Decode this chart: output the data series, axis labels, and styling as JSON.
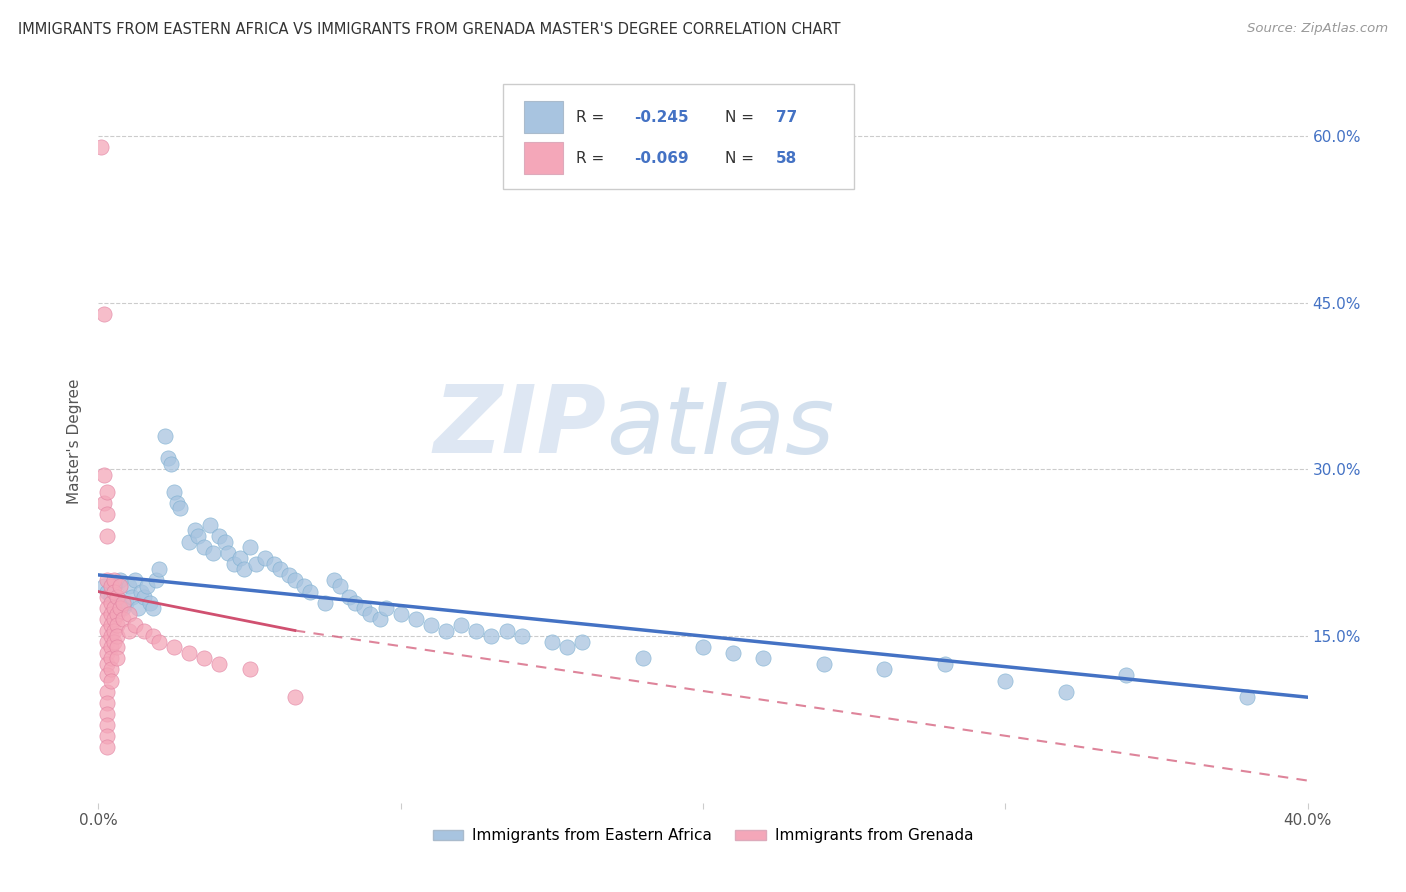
{
  "title": "IMMIGRANTS FROM EASTERN AFRICA VS IMMIGRANTS FROM GRENADA MASTER'S DEGREE CORRELATION CHART",
  "source": "Source: ZipAtlas.com",
  "ylabel": "Master's Degree",
  "xlim": [
    0.0,
    0.4
  ],
  "ylim": [
    0.0,
    0.65
  ],
  "blue_color": "#a8c4e0",
  "pink_color": "#f4a7b9",
  "blue_line_color": "#4472c4",
  "pink_line_color": "#d05070",
  "watermark_zip": "ZIP",
  "watermark_atlas": "atlas",
  "blue_scatter": [
    [
      0.002,
      0.195
    ],
    [
      0.003,
      0.19
    ],
    [
      0.004,
      0.185
    ],
    [
      0.005,
      0.195
    ],
    [
      0.006,
      0.185
    ],
    [
      0.007,
      0.2
    ],
    [
      0.008,
      0.175
    ],
    [
      0.009,
      0.18
    ],
    [
      0.01,
      0.195
    ],
    [
      0.011,
      0.185
    ],
    [
      0.012,
      0.2
    ],
    [
      0.013,
      0.175
    ],
    [
      0.014,
      0.19
    ],
    [
      0.015,
      0.185
    ],
    [
      0.016,
      0.195
    ],
    [
      0.017,
      0.18
    ],
    [
      0.018,
      0.175
    ],
    [
      0.019,
      0.2
    ],
    [
      0.02,
      0.21
    ],
    [
      0.022,
      0.33
    ],
    [
      0.023,
      0.31
    ],
    [
      0.024,
      0.305
    ],
    [
      0.025,
      0.28
    ],
    [
      0.026,
      0.27
    ],
    [
      0.027,
      0.265
    ],
    [
      0.03,
      0.235
    ],
    [
      0.032,
      0.245
    ],
    [
      0.033,
      0.24
    ],
    [
      0.035,
      0.23
    ],
    [
      0.037,
      0.25
    ],
    [
      0.038,
      0.225
    ],
    [
      0.04,
      0.24
    ],
    [
      0.042,
      0.235
    ],
    [
      0.043,
      0.225
    ],
    [
      0.045,
      0.215
    ],
    [
      0.047,
      0.22
    ],
    [
      0.048,
      0.21
    ],
    [
      0.05,
      0.23
    ],
    [
      0.052,
      0.215
    ],
    [
      0.055,
      0.22
    ],
    [
      0.058,
      0.215
    ],
    [
      0.06,
      0.21
    ],
    [
      0.063,
      0.205
    ],
    [
      0.065,
      0.2
    ],
    [
      0.068,
      0.195
    ],
    [
      0.07,
      0.19
    ],
    [
      0.075,
      0.18
    ],
    [
      0.078,
      0.2
    ],
    [
      0.08,
      0.195
    ],
    [
      0.083,
      0.185
    ],
    [
      0.085,
      0.18
    ],
    [
      0.088,
      0.175
    ],
    [
      0.09,
      0.17
    ],
    [
      0.093,
      0.165
    ],
    [
      0.095,
      0.175
    ],
    [
      0.1,
      0.17
    ],
    [
      0.105,
      0.165
    ],
    [
      0.11,
      0.16
    ],
    [
      0.115,
      0.155
    ],
    [
      0.12,
      0.16
    ],
    [
      0.125,
      0.155
    ],
    [
      0.13,
      0.15
    ],
    [
      0.135,
      0.155
    ],
    [
      0.14,
      0.15
    ],
    [
      0.15,
      0.145
    ],
    [
      0.155,
      0.14
    ],
    [
      0.16,
      0.145
    ],
    [
      0.18,
      0.13
    ],
    [
      0.2,
      0.14
    ],
    [
      0.21,
      0.135
    ],
    [
      0.22,
      0.13
    ],
    [
      0.24,
      0.125
    ],
    [
      0.26,
      0.12
    ],
    [
      0.28,
      0.125
    ],
    [
      0.3,
      0.11
    ],
    [
      0.32,
      0.1
    ],
    [
      0.34,
      0.115
    ],
    [
      0.38,
      0.095
    ]
  ],
  "pink_scatter": [
    [
      0.001,
      0.59
    ],
    [
      0.002,
      0.44
    ],
    [
      0.002,
      0.295
    ],
    [
      0.002,
      0.27
    ],
    [
      0.003,
      0.28
    ],
    [
      0.003,
      0.26
    ],
    [
      0.003,
      0.24
    ],
    [
      0.003,
      0.2
    ],
    [
      0.003,
      0.185
    ],
    [
      0.003,
      0.175
    ],
    [
      0.003,
      0.165
    ],
    [
      0.003,
      0.155
    ],
    [
      0.003,
      0.145
    ],
    [
      0.003,
      0.135
    ],
    [
      0.003,
      0.125
    ],
    [
      0.003,
      0.115
    ],
    [
      0.003,
      0.1
    ],
    [
      0.003,
      0.09
    ],
    [
      0.003,
      0.08
    ],
    [
      0.003,
      0.07
    ],
    [
      0.003,
      0.06
    ],
    [
      0.003,
      0.05
    ],
    [
      0.004,
      0.195
    ],
    [
      0.004,
      0.18
    ],
    [
      0.004,
      0.17
    ],
    [
      0.004,
      0.16
    ],
    [
      0.004,
      0.15
    ],
    [
      0.004,
      0.14
    ],
    [
      0.004,
      0.13
    ],
    [
      0.004,
      0.12
    ],
    [
      0.004,
      0.11
    ],
    [
      0.005,
      0.2
    ],
    [
      0.005,
      0.19
    ],
    [
      0.005,
      0.175
    ],
    [
      0.005,
      0.165
    ],
    [
      0.005,
      0.155
    ],
    [
      0.005,
      0.145
    ],
    [
      0.006,
      0.185
    ],
    [
      0.006,
      0.17
    ],
    [
      0.006,
      0.16
    ],
    [
      0.006,
      0.15
    ],
    [
      0.006,
      0.14
    ],
    [
      0.006,
      0.13
    ],
    [
      0.007,
      0.195
    ],
    [
      0.007,
      0.175
    ],
    [
      0.008,
      0.18
    ],
    [
      0.008,
      0.165
    ],
    [
      0.01,
      0.17
    ],
    [
      0.01,
      0.155
    ],
    [
      0.012,
      0.16
    ],
    [
      0.015,
      0.155
    ],
    [
      0.018,
      0.15
    ],
    [
      0.02,
      0.145
    ],
    [
      0.025,
      0.14
    ],
    [
      0.03,
      0.135
    ],
    [
      0.035,
      0.13
    ],
    [
      0.04,
      0.125
    ],
    [
      0.05,
      0.12
    ],
    [
      0.065,
      0.095
    ]
  ]
}
